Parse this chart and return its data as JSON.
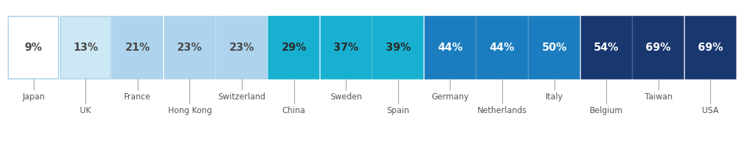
{
  "categories": [
    "Japan",
    "UK",
    "France",
    "Hong Kong",
    "Switzerland",
    "China",
    "Sweden",
    "Spain",
    "Germany",
    "Netherlands",
    "Italy",
    "Belgium",
    "Taiwan",
    "USA"
  ],
  "values": [
    9,
    13,
    21,
    23,
    23,
    29,
    37,
    39,
    44,
    44,
    50,
    54,
    69,
    69
  ],
  "bar_colors": [
    "#ffffff",
    "#cde8f5",
    "#aed4ed",
    "#aed4ed",
    "#aed4ed",
    "#17b0d0",
    "#17b0d0",
    "#17b0d0",
    "#1b7dbf",
    "#1b7dbf",
    "#1b7dbf",
    "#1a3870",
    "#1a3870",
    "#1a3870"
  ],
  "border_colors": [
    "#aed4ed",
    "#aed4ed",
    "#aed4ed",
    "#aed4ed",
    "#aed4ed",
    "#17b0d0",
    "#17b0d0",
    "#17b0d0",
    "#1b7dbf",
    "#1b7dbf",
    "#1b7dbf",
    "#1a3870",
    "#1a3870",
    "#1a3870"
  ],
  "text_colors": [
    "#4a4a4a",
    "#4a4a4a",
    "#4a4a4a",
    "#4a4a4a",
    "#4a4a4a",
    "#2a2a2a",
    "#2a2a2a",
    "#2a2a2a",
    "#ffffff",
    "#ffffff",
    "#ffffff",
    "#ffffff",
    "#ffffff",
    "#ffffff"
  ],
  "label_row1": [
    "Japan",
    "",
    "France",
    "",
    "Switzerland",
    "",
    "Sweden",
    "",
    "Germany",
    "",
    "Italy",
    "",
    "Taiwan",
    ""
  ],
  "label_row2": [
    "",
    "UK",
    "",
    "Hong Kong",
    "",
    "China",
    "",
    "Spain",
    "",
    "Netherlands",
    "",
    "Belgium",
    "",
    "USA"
  ],
  "background_color": "#ffffff",
  "label_fontsize": 8.5,
  "value_fontsize": 11.0,
  "fig_width": 10.8,
  "fig_height": 2.16,
  "dpi": 100
}
